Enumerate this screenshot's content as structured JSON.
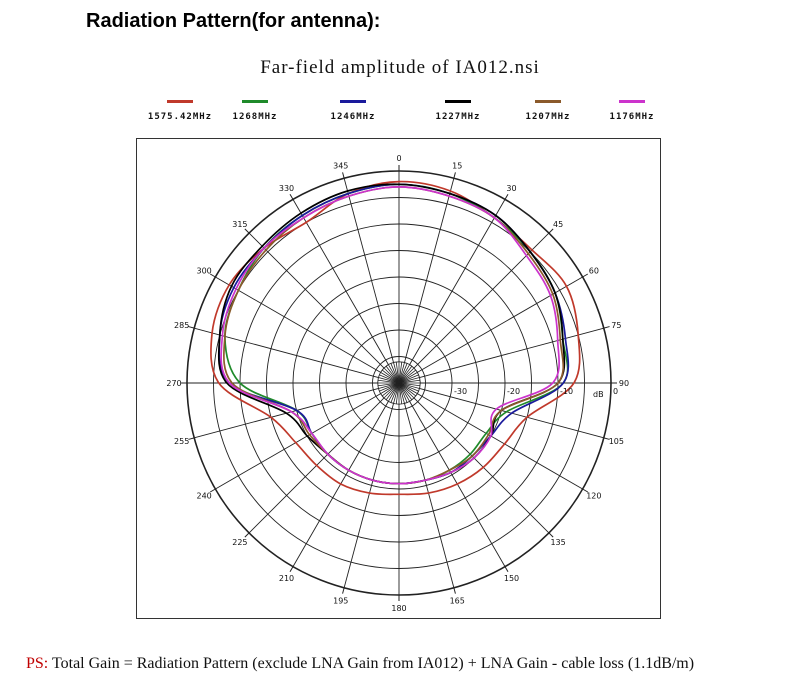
{
  "page": {
    "title": "Radiation Pattern(for antenna):"
  },
  "footnote": {
    "prefix": "PS:",
    "text": " Total Gain = Radiation Pattern (exclude LNA Gain from IA012) + LNA Gain - cable loss (1.1dB/m)"
  },
  "chart_data": {
    "type": "polar-line",
    "title": "Far-field amplitude of  IA012.nsi",
    "unit_label": "dB",
    "radial_range": [
      -40,
      0
    ],
    "radial_ticks": [
      -30,
      -20,
      -10,
      0
    ],
    "radial_tick_labels": [
      "-30",
      "-20",
      "-10",
      "0"
    ],
    "grid": true,
    "legend_position": "top",
    "angular_tick_labels": [
      {
        "angle": 0,
        "label": "0"
      },
      {
        "angle": 15,
        "label": "15"
      },
      {
        "angle": 30,
        "label": "30"
      },
      {
        "angle": 45,
        "label": "45"
      },
      {
        "angle": 60,
        "label": "60"
      },
      {
        "angle": 75,
        "label": "75"
      },
      {
        "angle": 90,
        "label": "90"
      },
      {
        "angle": 105,
        "label": "105"
      },
      {
        "angle": 120,
        "label": "120"
      },
      {
        "angle": 135,
        "label": "135"
      },
      {
        "angle": 150,
        "label": "150"
      },
      {
        "angle": 165,
        "label": "165"
      },
      {
        "angle": 180,
        "label": "180"
      },
      {
        "angle": 195,
        "label": "195"
      },
      {
        "angle": 210,
        "label": "210"
      },
      {
        "angle": 225,
        "label": "225"
      },
      {
        "angle": 240,
        "label": "240"
      },
      {
        "angle": 255,
        "label": "255"
      },
      {
        "angle": 270,
        "label": "270"
      },
      {
        "angle": 285,
        "label": "285"
      },
      {
        "angle": 300,
        "label": "300"
      },
      {
        "angle": 315,
        "label": "315"
      },
      {
        "angle": 330,
        "label": "330"
      },
      {
        "angle": 345,
        "label": "345"
      }
    ],
    "angles_deg": [
      0,
      15,
      30,
      45,
      60,
      75,
      90,
      105,
      120,
      135,
      150,
      165,
      180,
      195,
      210,
      225,
      240,
      255,
      270,
      285,
      300,
      315,
      330,
      345
    ],
    "series": [
      {
        "name": "1575.42MHz",
        "color": "#c0392b",
        "values_db": [
          -2,
          -2.5,
          -4,
          -4.5,
          -3.5,
          -5,
          -7,
          -15,
          -17,
          -17.5,
          -18,
          -18.5,
          -19,
          -18.5,
          -18,
          -18,
          -17.5,
          -15,
          -6,
          -3.5,
          -3,
          -4,
          -5,
          -3
        ]
      },
      {
        "name": "1268MHz",
        "color": "#1f8a2a",
        "values_db": [
          -2.5,
          -3,
          -4,
          -5,
          -6,
          -8,
          -9,
          -19,
          -21,
          -21,
          -21,
          -21,
          -21,
          -21,
          -21,
          -21,
          -21,
          -20,
          -10,
          -6,
          -5,
          -4,
          -3.5,
          -3
        ]
      },
      {
        "name": "1246MHz",
        "color": "#1a1a9c",
        "values_db": [
          -2.5,
          -3,
          -3.5,
          -5,
          -6,
          -7.5,
          -9,
          -18,
          -20,
          -20.5,
          -20.5,
          -21,
          -21,
          -21,
          -21,
          -21,
          -21,
          -20,
          -8,
          -5,
          -4,
          -4,
          -3.5,
          -3
        ]
      },
      {
        "name": "1227MHz",
        "color": "#000000",
        "values_db": [
          -2.5,
          -3,
          -3.5,
          -5,
          -6,
          -8,
          -10,
          -20,
          -20,
          -20,
          -20.5,
          -21,
          -21,
          -21,
          -21,
          -21,
          -20,
          -18,
          -7.5,
          -5,
          -3.5,
          -3.5,
          -3,
          -2.5
        ]
      },
      {
        "name": "1207MHz",
        "color": "#8b5a2b",
        "values_db": [
          -3,
          -3.5,
          -4,
          -5.5,
          -6.5,
          -8.5,
          -10,
          -20,
          -20.5,
          -20.5,
          -21,
          -21,
          -21,
          -21,
          -21,
          -21,
          -20.5,
          -19,
          -8.5,
          -6,
          -5,
          -4.5,
          -4,
          -3.5
        ]
      },
      {
        "name": "1176MHz",
        "color": "#cc33cc",
        "values_db": [
          -3,
          -3.5,
          -4,
          -6,
          -7,
          -9,
          -11,
          -21,
          -20,
          -20,
          -20.5,
          -21,
          -21,
          -21,
          -21,
          -21,
          -21,
          -19,
          -8,
          -5.5,
          -4.5,
          -4,
          -4,
          -3.5
        ]
      }
    ]
  }
}
